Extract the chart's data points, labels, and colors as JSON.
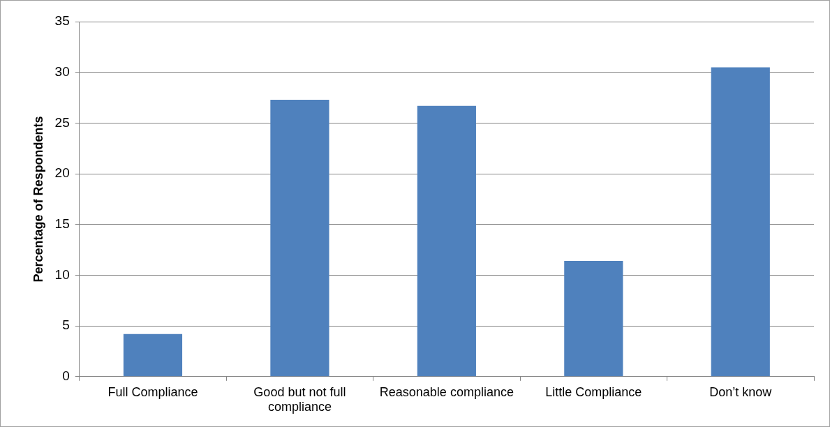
{
  "chart_data": {
    "type": "bar",
    "ylabel": "Percentage of Respondents",
    "categories": [
      "Full Compliance",
      "Good but not full compliance",
      "Reasonable compliance",
      "Little Compliance",
      "Don’t know"
    ],
    "values": [
      4.2,
      27.3,
      26.7,
      11.4,
      30.5
    ],
    "color": "#4f81bd",
    "ylim": [
      0,
      35
    ],
    "yticks": [
      0,
      5,
      10,
      15,
      20,
      25,
      30,
      35
    ],
    "grid": "y",
    "legend": false
  }
}
